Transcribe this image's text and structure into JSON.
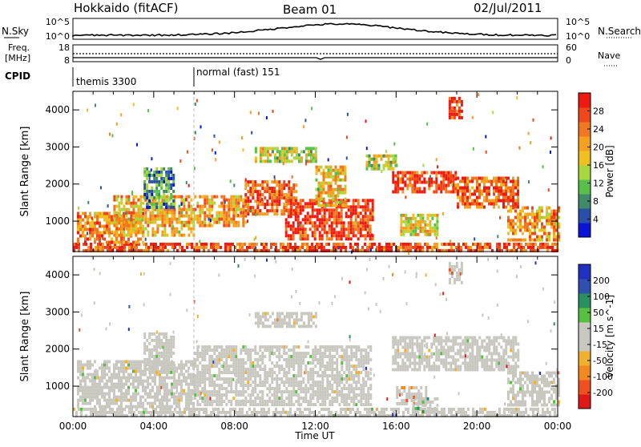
{
  "header": {
    "station": "Hokkaido (fitACF)",
    "beam": "Beam 01",
    "date": "02/Jul/2011"
  },
  "side_labels": {
    "nsky": "N.Sky",
    "freq_line1": "Freq.",
    "freq_line2": "[MHz]",
    "cpid": "CPID",
    "nsearch": "N.Search",
    "nave": "Nave"
  },
  "small_axes": {
    "noise_left_ticks": [
      "10^5",
      "10^0"
    ],
    "noise_right_ticks": [
      "10^5",
      "10^0"
    ],
    "freq_left_ticks": [
      "18",
      "8"
    ],
    "nave_right_ticks": [
      "60",
      "0"
    ]
  },
  "cpid_segments": [
    {
      "label": "themis 3300",
      "start_h": 0,
      "end_h": 6
    },
    {
      "label": "normal (fast) 151",
      "start_h": 6,
      "end_h": 24
    }
  ],
  "chart_data": [
    {
      "type": "heatmap",
      "title": "",
      "variable": "Power",
      "colorbar_label": "Power [dB]",
      "colorbar_ticks": [
        "28",
        "24",
        "20",
        "16",
        "12",
        "8",
        "4"
      ],
      "colorbar_range": [
        0,
        30
      ],
      "colors": [
        "#0a14d8",
        "#2a4fa8",
        "#3f8a6a",
        "#58c048",
        "#a8d840",
        "#f0c020",
        "#f5a020",
        "#f07820",
        "#f04818",
        "#ee1a12"
      ],
      "xlabel": "",
      "ylabel": "Slant Range [km]",
      "ylim": [
        180,
        4500
      ],
      "y_ticks": [
        "1000",
        "2000",
        "3000",
        "4000"
      ],
      "x_range_h": [
        0,
        24
      ],
      "echo_regions": [
        {
          "h0": 0.0,
          "h1": 24.0,
          "r0": 180,
          "r1": 420,
          "level": 0.85
        },
        {
          "h0": 0.2,
          "h1": 3.5,
          "r0": 420,
          "r1": 1250,
          "level": 0.72
        },
        {
          "h0": 2.0,
          "h1": 6.0,
          "r0": 600,
          "r1": 1700,
          "level": 0.62
        },
        {
          "h0": 3.5,
          "h1": 5.0,
          "r0": 1400,
          "r1": 2450,
          "level": 0.25
        },
        {
          "h0": 6.0,
          "h1": 8.5,
          "r0": 900,
          "r1": 1700,
          "level": 0.65
        },
        {
          "h0": 8.5,
          "h1": 11.0,
          "r0": 1200,
          "r1": 2100,
          "level": 0.82
        },
        {
          "h0": 10.5,
          "h1": 14.8,
          "r0": 500,
          "r1": 1600,
          "level": 0.9
        },
        {
          "h0": 9.0,
          "h1": 12.0,
          "r0": 2600,
          "r1": 3000,
          "level": 0.5
        },
        {
          "h0": 12.0,
          "h1": 13.5,
          "r0": 1400,
          "r1": 2500,
          "level": 0.6
        },
        {
          "h0": 15.8,
          "h1": 19.0,
          "r0": 1800,
          "r1": 2350,
          "level": 0.88
        },
        {
          "h0": 19.0,
          "h1": 22.0,
          "r0": 1400,
          "r1": 2200,
          "level": 0.8
        },
        {
          "h0": 16.2,
          "h1": 18.0,
          "r0": 600,
          "r1": 1200,
          "level": 0.55
        },
        {
          "h0": 21.5,
          "h1": 24.0,
          "r0": 500,
          "r1": 1400,
          "level": 0.68
        },
        {
          "h0": 14.5,
          "h1": 16.0,
          "r0": 2400,
          "r1": 2800,
          "level": 0.45
        },
        {
          "h0": 18.6,
          "h1": 19.2,
          "r0": 3800,
          "r1": 4350,
          "level": 0.9
        }
      ]
    },
    {
      "type": "heatmap",
      "title": "",
      "variable": "Velocity",
      "colorbar_label": "Velocity [m s^-1]",
      "colorbar_ticks": [
        "200",
        "100",
        "50",
        "15",
        "-15",
        "-50",
        "-100",
        "-200"
      ],
      "colorbar_range": [
        -250,
        250
      ],
      "colors": [
        "#e01818",
        "#f05020",
        "#f08a20",
        "#f0b030",
        "#c8c8c0",
        "#c8c8c0",
        "#58c040",
        "#2a9060",
        "#3050b0",
        "#2030c0"
      ],
      "xlabel": "Time UT",
      "ylabel": "Slant Range [km]",
      "ylim": [
        180,
        4500
      ],
      "y_ticks": [
        "1000",
        "2000",
        "3000",
        "4000"
      ],
      "x_range_h": [
        0,
        24
      ],
      "x_ticks": [
        "00:00",
        "04:00",
        "08:00",
        "12:00",
        "16:00",
        "20:00",
        "00:00"
      ],
      "echo_regions": [
        {
          "h0": 0.0,
          "h1": 24.0,
          "r0": 180,
          "r1": 420,
          "level": 0.5
        },
        {
          "h0": 0.2,
          "h1": 6.0,
          "r0": 420,
          "r1": 1700,
          "level": 0.5
        },
        {
          "h0": 3.5,
          "h1": 5.0,
          "r0": 1400,
          "r1": 2450,
          "level": 0.5
        },
        {
          "h0": 6.0,
          "h1": 14.8,
          "r0": 500,
          "r1": 2100,
          "level": 0.5
        },
        {
          "h0": 9.0,
          "h1": 12.0,
          "r0": 2600,
          "r1": 3000,
          "level": 0.4
        },
        {
          "h0": 15.8,
          "h1": 22.0,
          "r0": 1400,
          "r1": 2350,
          "level": 0.5
        },
        {
          "h0": 16.0,
          "h1": 17.5,
          "r0": 500,
          "r1": 1000,
          "level": 0.2
        },
        {
          "h0": 16.8,
          "h1": 18.0,
          "r0": 300,
          "r1": 700,
          "level": 0.72
        },
        {
          "h0": 21.5,
          "h1": 24.0,
          "r0": 500,
          "r1": 1400,
          "level": 0.5
        },
        {
          "h0": 18.6,
          "h1": 19.2,
          "r0": 3800,
          "r1": 4350,
          "level": 0.05
        }
      ]
    }
  ]
}
